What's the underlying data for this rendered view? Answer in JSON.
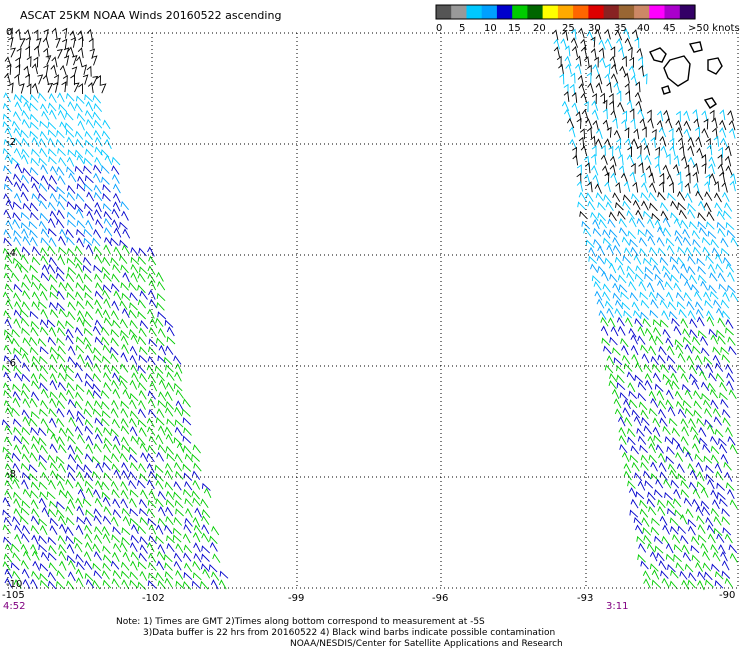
{
  "title": "ASCAT 25KM NOAA Winds 20160522 ascending",
  "legend": {
    "swatches": [
      "#555555",
      "#999999",
      "#00c8ff",
      "#00a0ff",
      "#0000cc",
      "#00cc00",
      "#006600",
      "#ffff00",
      "#ffaa00",
      "#ff6600",
      "#dd0000",
      "#882222",
      "#996633",
      "#cc8866",
      "#ff00ff",
      "#aa00cc",
      "#330066"
    ],
    "labels": [
      "0",
      "5",
      "10",
      "15",
      "20",
      "25",
      "30",
      "35",
      "40",
      "45",
      ">50 knots"
    ]
  },
  "axes": {
    "lat_labels": [
      "0",
      "-2",
      "-4",
      "-6",
      "-8",
      "-10"
    ],
    "lon_labels": [
      "-105",
      "-102",
      "-99",
      "-96",
      "-93",
      "-90"
    ]
  },
  "times": {
    "left": "4:52",
    "right": "3:11"
  },
  "notes": [
    "Note: 1) Times are GMT 2)Times along bottom correspond to measurement at -5S",
    "3)Data buffer is 22 hrs from 20160522 4) Black wind barbs indicate possible contamination",
    "NOAA/NESDIS/Center for Satellite Applications and Research"
  ]
}
